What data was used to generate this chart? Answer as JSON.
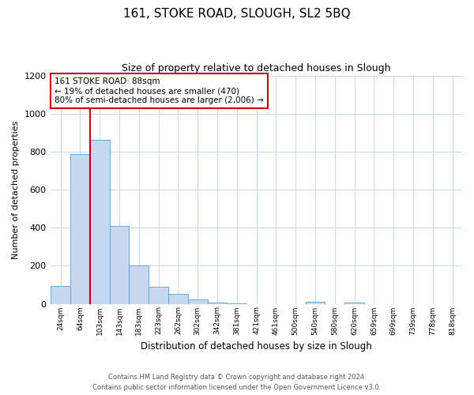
{
  "title": "161, STOKE ROAD, SLOUGH, SL2 5BQ",
  "subtitle": "Size of property relative to detached houses in Slough",
  "xlabel": "Distribution of detached houses by size in Slough",
  "ylabel": "Number of detached properties",
  "bar_labels": [
    "24sqm",
    "64sqm",
    "103sqm",
    "143sqm",
    "183sqm",
    "223sqm",
    "262sqm",
    "302sqm",
    "342sqm",
    "381sqm",
    "421sqm",
    "461sqm",
    "500sqm",
    "540sqm",
    "580sqm",
    "620sqm",
    "659sqm",
    "699sqm",
    "739sqm",
    "778sqm",
    "818sqm"
  ],
  "bar_values": [
    95,
    785,
    860,
    410,
    200,
    88,
    52,
    22,
    8,
    2,
    0,
    0,
    0,
    10,
    0,
    8,
    0,
    0,
    0,
    0,
    0
  ],
  "bar_color": "#c6d9f0",
  "bar_edge_color": "#5b9bd5",
  "vline_color": "#cc0000",
  "vline_index": 1.5,
  "ylim": [
    0,
    1200
  ],
  "yticks": [
    0,
    200,
    400,
    600,
    800,
    1000,
    1200
  ],
  "annotation_title": "161 STOKE ROAD: 88sqm",
  "annotation_line1": "← 19% of detached houses are smaller (470)",
  "annotation_line2": "80% of semi-detached houses are larger (2,006) →",
  "annotation_box_color": "#ffffff",
  "annotation_box_edge": "#cc0000",
  "footer_line1": "Contains HM Land Registry data © Crown copyright and database right 2024.",
  "footer_line2": "Contains public sector information licensed under the Open Government Licence v3.0.",
  "background_color": "#ffffff",
  "grid_color": "#c8d8e8"
}
